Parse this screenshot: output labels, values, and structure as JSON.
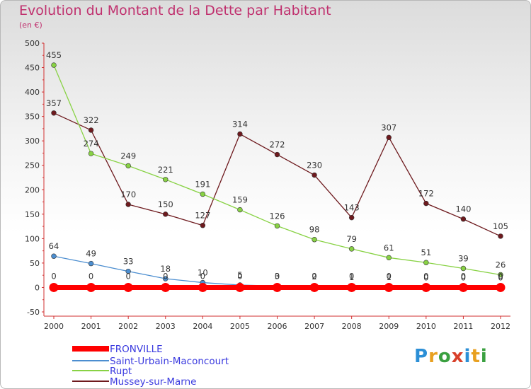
{
  "header": {
    "title": "Evolution du Montant de la Dette par Habitant",
    "subtitle": "(en €)"
  },
  "logo": {
    "letters": [
      "P",
      "r",
      "o",
      "x",
      "i",
      "t",
      "i"
    ],
    "colors": [
      "#2c8fd6",
      "#e8a020",
      "#3aa040",
      "#d8402a",
      "#2c8fd6",
      "#e8a020",
      "#3aa040"
    ]
  },
  "chart_data": {
    "type": "line",
    "title": "Evolution du Montant de la Dette par Habitant",
    "ylabel": "(en €)",
    "xlabel": "",
    "ylim": [
      -50,
      500
    ],
    "yticks": [
      -50,
      0,
      50,
      100,
      150,
      200,
      250,
      300,
      350,
      400,
      450,
      500
    ],
    "x": [
      "2000",
      "2001",
      "2002",
      "2003",
      "2004",
      "2005",
      "2006",
      "2007",
      "2008",
      "2009",
      "2010",
      "2011",
      "2012"
    ],
    "grid": false,
    "legend_position": "bottom-left",
    "series": [
      {
        "name": "FRONVILLE",
        "color": "#ff0000",
        "values": [
          0,
          0,
          0,
          0,
          0,
          0,
          0,
          0,
          0,
          0,
          0,
          0,
          0
        ],
        "labels": [
          "0",
          "0",
          "0",
          "0",
          "0",
          "0",
          "0",
          "0",
          "0",
          "0",
          "0",
          "0",
          "0"
        ]
      },
      {
        "name": "Saint-Urbain-Maconcourt",
        "color": "#4c8ed0",
        "values": [
          64,
          49,
          33,
          18,
          10,
          5,
          3,
          2,
          1,
          1,
          0,
          0,
          0
        ],
        "labels": [
          "64",
          "49",
          "33",
          "18",
          "10",
          "5",
          "3",
          "2",
          "1",
          "1",
          "0",
          "0",
          "0"
        ]
      },
      {
        "name": "Rupt",
        "color": "#88d244",
        "values": [
          455,
          274,
          249,
          221,
          191,
          159,
          126,
          98,
          79,
          61,
          51,
          39,
          26
        ],
        "labels": [
          "455",
          "274",
          "249",
          "221",
          "191",
          "159",
          "126",
          "98",
          "79",
          "61",
          "51",
          "39",
          "26"
        ]
      },
      {
        "name": "Mussey-sur-Marne",
        "color": "#6e1a1e",
        "values": [
          357,
          322,
          170,
          150,
          127,
          314,
          272,
          230,
          143,
          307,
          172,
          140,
          105
        ],
        "labels": [
          "357",
          "322",
          "170",
          "150",
          "127",
          "314",
          "272",
          "230",
          "143",
          "307",
          "172",
          "140",
          "105"
        ]
      }
    ]
  }
}
